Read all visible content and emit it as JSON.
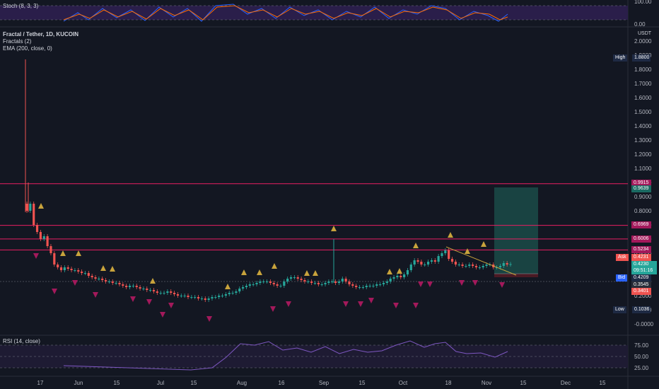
{
  "stoch": {
    "label": "Stoch (8, 3, 3)",
    "axis": [
      "100.00",
      "0.00"
    ]
  },
  "main": {
    "title": "Fractal / Tether, 1D, KUCOIN",
    "indicators": [
      "Fractals (2)",
      "EMA (200, close, 0)"
    ],
    "currency": "USDT",
    "axis": [
      "2.0000",
      "1.9000",
      "1.8000",
      "1.7000",
      "1.6000",
      "1.5000",
      "1.4000",
      "1.3000",
      "1.2000",
      "1.1000",
      "1.0000",
      "0.9000",
      "0.8000",
      "0.7000",
      "0.6000",
      "0.5000",
      "0.4000",
      "0.3000",
      "0.2000",
      "0.1000",
      "-0.0000"
    ],
    "tags": {
      "high_label": "High",
      "high_value": "1.8800",
      "level1": "0.9915",
      "tp": "0.9639",
      "level2": "0.6969",
      "level3": "0.6006",
      "level4": "0.5234",
      "ask_label": "Ask",
      "ask_value": "0.4231",
      "last_value": "0.4230",
      "countdown": "09:51:16",
      "bid_label": "Bid",
      "bid_value": "0.4209",
      "sl1": "0.3545",
      "sl2": "0.3401",
      "low_label": "Low",
      "low_value": "0.1036"
    },
    "colors": {
      "up": "#26a69a",
      "down": "#ef5350",
      "level": "#e91e63",
      "fractal_up": "#c8a33c",
      "fractal_down": "#a3195b",
      "target_zone": "#1b4b48",
      "stop_zone": "#4a1a24"
    }
  },
  "rsi": {
    "label": "RSI (14, close)",
    "axis": [
      "75.00",
      "50.00",
      "25.00"
    ]
  },
  "time_axis": [
    "17",
    "Jun",
    "15",
    "Jul",
    "15",
    "Aug",
    "16",
    "Sep",
    "15",
    "Oct",
    "18",
    "Nov",
    "15",
    "Dec",
    "15"
  ],
  "chart_data": {
    "type": "candlestick",
    "title": "Fractal / Tether, 1D, KUCOIN",
    "ylabel": "USDT",
    "ylim": [
      0,
      2.0
    ],
    "horizontal_levels": [
      0.9915,
      0.6969,
      0.6006,
      0.5234
    ],
    "x_ticks": [
      "17",
      "Jun",
      "15",
      "Jul",
      "15",
      "Aug",
      "16",
      "Sep",
      "15",
      "Oct",
      "18",
      "Nov",
      "15",
      "Dec",
      "15"
    ],
    "closes": [
      0.8,
      0.85,
      0.7,
      0.65,
      0.6,
      0.62,
      0.55,
      0.5,
      0.42,
      0.4,
      0.38,
      0.4,
      0.39,
      0.38,
      0.38,
      0.37,
      0.36,
      0.36,
      0.34,
      0.33,
      0.32,
      0.32,
      0.31,
      0.3,
      0.3,
      0.29,
      0.29,
      0.28,
      0.27,
      0.26,
      0.27,
      0.27,
      0.26,
      0.25,
      0.25,
      0.24,
      0.24,
      0.23,
      0.22,
      0.22,
      0.22,
      0.23,
      0.22,
      0.21,
      0.2,
      0.2,
      0.2,
      0.19,
      0.19,
      0.19,
      0.18,
      0.18,
      0.17,
      0.18,
      0.19,
      0.19,
      0.2,
      0.2,
      0.21,
      0.22,
      0.22,
      0.23,
      0.25,
      0.26,
      0.27,
      0.28,
      0.28,
      0.29,
      0.3,
      0.3,
      0.3,
      0.29,
      0.28,
      0.27,
      0.27,
      0.3,
      0.32,
      0.33,
      0.33,
      0.32,
      0.31,
      0.3,
      0.3,
      0.29,
      0.29,
      0.28,
      0.28,
      0.29,
      0.3,
      0.3,
      0.29,
      0.3,
      0.32,
      0.3,
      0.28,
      0.27,
      0.26,
      0.26,
      0.26,
      0.27,
      0.27,
      0.27,
      0.28,
      0.28,
      0.29,
      0.3,
      0.32,
      0.33,
      0.34,
      0.33,
      0.35,
      0.38,
      0.42,
      0.45,
      0.44,
      0.42,
      0.42,
      0.44,
      0.45,
      0.44,
      0.48,
      0.5,
      0.52,
      0.46,
      0.44,
      0.42,
      0.42,
      0.41,
      0.41,
      0.42,
      0.41,
      0.4,
      0.4,
      0.41,
      0.42,
      0.42,
      0.4,
      0.4,
      0.41,
      0.43,
      0.42,
      0.423
    ],
    "rsi_levels": [
      75,
      50,
      25
    ]
  }
}
